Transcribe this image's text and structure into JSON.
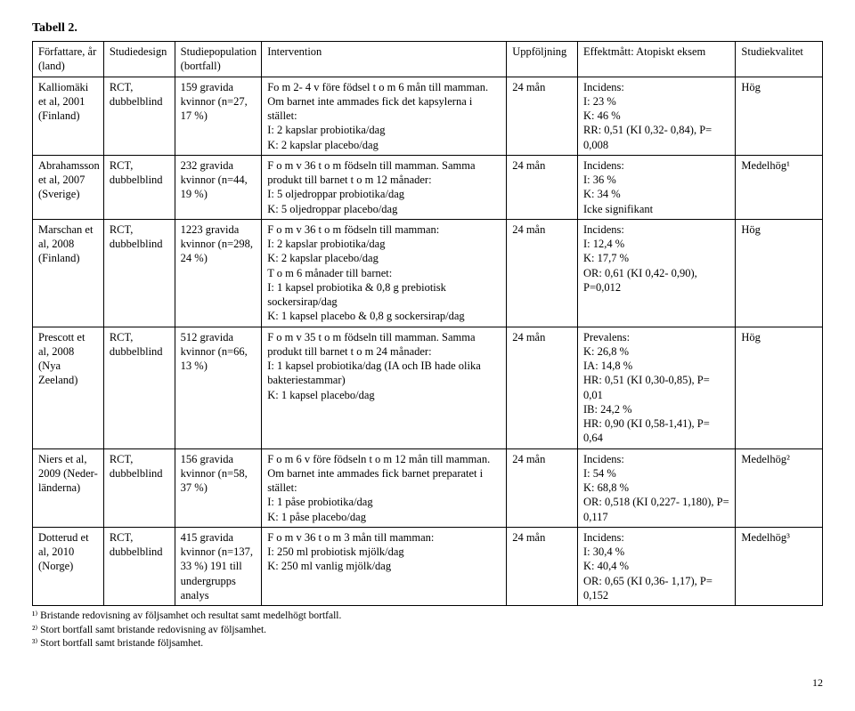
{
  "title": "Tabell 2.",
  "columns": [
    "Författare, år (land)",
    "Studiedesign",
    "Studiepopulation (bortfall)",
    "Intervention",
    "Uppföljning",
    "Effektmått: Atopiskt eksem",
    "Studiekvalitet"
  ],
  "rows": [
    {
      "author": "Kalliomäki et al, 2001 (Finland)",
      "design": "RCT, dubbelblind",
      "population": "159 gravida kvinnor (n=27, 17 %)",
      "intervention": "Fo m 2- 4 v före födsel t o m 6 mån till mamman. Om barnet inte ammades fick det kapsylerna i stället:\nI: 2 kapslar probiotika/dag\nK: 2 kapslar placebo/dag",
      "followup": "24 mån",
      "effect": "Incidens:\nI: 23 %\nK: 46 %\nRR: 0,51 (KI 0,32- 0,84), P= 0,008",
      "quality": "Hög"
    },
    {
      "author": "Abrahamsson et al, 2007 (Sverige)",
      "design": "RCT, dubbelblind",
      "population": "232 gravida kvinnor (n=44, 19 %)",
      "intervention": "F o m v 36 t o m födseln till mamman. Samma produkt till barnet t o m 12 månader:\nI: 5 oljedroppar probiotika/dag\nK: 5 oljedroppar placebo/dag",
      "followup": "24 mån",
      "effect": "Incidens:\nI: 36 %\nK: 34 %\nIcke signifikant",
      "quality": "Medelhög¹"
    },
    {
      "author": "Marschan et al, 2008 (Finland)",
      "design": "RCT, dubbelblind",
      "population": "1223 gravida kvinnor (n=298, 24 %)",
      "intervention": "F o m v 36 t o m födseln till mamman:\nI: 2 kapslar probiotika/dag\nK: 2 kapslar placebo/dag\nT o m 6 månader till barnet:\nI: 1 kapsel probiotika & 0,8 g prebiotisk sockersirap/dag\nK: 1 kapsel placebo & 0,8 g sockersirap/dag",
      "followup": "24 mån",
      "effect": "Incidens:\nI: 12,4 %\nK: 17,7 %\nOR: 0,61 (KI 0,42- 0,90), P=0,012",
      "quality": "Hög"
    },
    {
      "author": "Prescott et al, 2008 (Nya Zeeland)",
      "design": "RCT, dubbelblind",
      "population": "512 gravida kvinnor (n=66, 13 %)",
      "intervention": "F o m v 35 t o m födseln till mamman. Samma produkt till barnet t o m 24 månader:\nI: 1 kapsel probiotika/dag (IA och IB hade olika bakteriestammar)\nK: 1 kapsel placebo/dag",
      "followup": "24 mån",
      "effect": "Prevalens:\nK: 26,8 %\nIA: 14,8 %\nHR: 0,51 (KI 0,30-0,85), P= 0,01\nIB: 24,2 %\nHR: 0,90 (KI 0,58-1,41), P= 0,64",
      "quality": "Hög"
    },
    {
      "author": "Niers et al, 2009 (Neder-länderna)",
      "design": "RCT, dubbelblind",
      "population": "156 gravida kvinnor (n=58, 37 %)",
      "intervention": "F o m 6 v före födseln t o m 12 mån till mamman. Om barnet inte ammades fick barnet preparatet i stället:\nI: 1 påse probiotika/dag\nK: 1 påse placebo/dag",
      "followup": "24 mån",
      "effect": "Incidens:\nI: 54 %\nK: 68,8 %\nOR: 0,518 (KI 0,227- 1,180), P= 0,117",
      "quality": "Medelhög²"
    },
    {
      "author": "Dotterud et al, 2010 (Norge)",
      "design": "RCT, dubbelblind",
      "population": "415 gravida kvinnor (n=137, 33 %) 191 till undergrupps analys",
      "intervention": "F o m v 36 t o m 3 mån till mamman:\nI: 250 ml probiotisk mjölk/dag\nK: 250 ml vanlig mjölk/dag",
      "followup": "24 mån",
      "effect": "Incidens:\nI: 30,4 %\nK: 40,4 %\nOR: 0,65 (KI 0,36- 1,17), P= 0,152",
      "quality": "Medelhög³"
    }
  ],
  "footnotes": [
    "¹⁾ Bristande redovisning av följsamhet och resultat samt medelhögt bortfall.",
    "²⁾ Stort bortfall samt bristande redovisning av följsamhet.",
    "³⁾ Stort bortfall samt bristande följsamhet."
  ],
  "page_number": "12"
}
